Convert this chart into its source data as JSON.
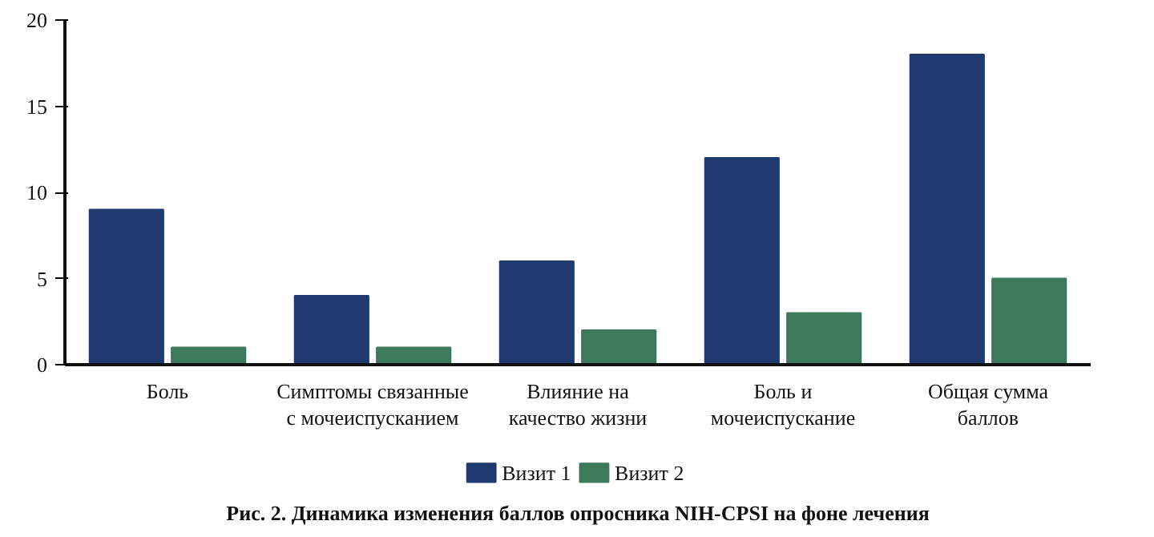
{
  "chart_data": {
    "type": "bar",
    "title": "Рис. 2. Динамика изменения баллов опросника NIH-CPSI на фоне лечения",
    "categories": [
      "Боль",
      "Симптомы связанные\nс мочеиспусканием",
      "Влияние на\nкачество жизни",
      "Боль и\nмочеиспускание",
      "Общая сумма\nбаллов"
    ],
    "series": [
      {
        "name": "Визит 1",
        "color": "#1f3a6e",
        "values": [
          9,
          4,
          6,
          12,
          18
        ]
      },
      {
        "name": "Визит 2",
        "color": "#3d7a5c",
        "values": [
          1,
          1,
          2,
          3,
          5
        ]
      }
    ],
    "ylim": [
      0,
      20
    ],
    "yticks": [
      0,
      5,
      10,
      15,
      20
    ],
    "grid": false,
    "legend": "bottom"
  }
}
